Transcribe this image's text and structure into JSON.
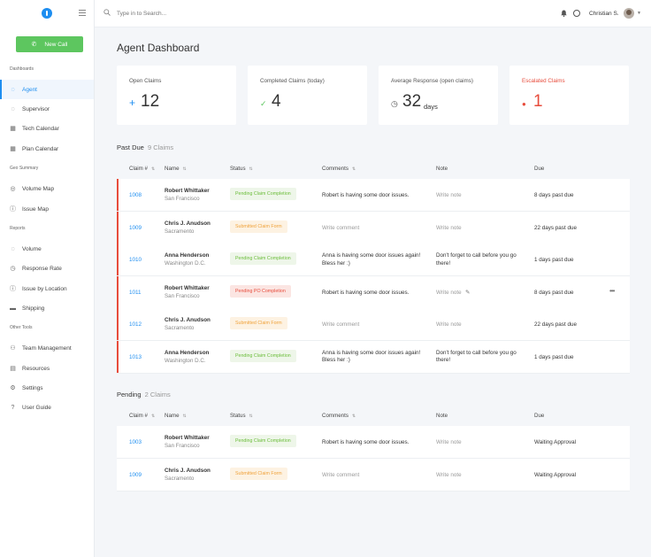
{
  "sidebar": {
    "new_call": "New Call",
    "sections": [
      {
        "title": "Dashboards",
        "items": [
          {
            "label": "Agent",
            "icon": "agent-icon",
            "active": true
          },
          {
            "label": "Supervisor",
            "icon": "supervisor-icon"
          },
          {
            "label": "Tech Calendar",
            "icon": "calendar-icon"
          },
          {
            "label": "Plan Calendar",
            "icon": "calendar-icon"
          }
        ]
      },
      {
        "title": "Geo Summary",
        "items": [
          {
            "label": "Volume Map",
            "icon": "globe-icon"
          },
          {
            "label": "Issue Map",
            "icon": "info-icon"
          }
        ]
      },
      {
        "title": "Reports",
        "items": [
          {
            "label": "Volume",
            "icon": "volume-icon"
          },
          {
            "label": "Response Rate",
            "icon": "clock-icon"
          },
          {
            "label": "Issue by Location",
            "icon": "info-icon"
          },
          {
            "label": "Shipping",
            "icon": "truck-icon"
          }
        ]
      },
      {
        "title": "Other Tools",
        "items": [
          {
            "label": "Team Management",
            "icon": "team-icon"
          },
          {
            "label": "Resources",
            "icon": "document-icon"
          },
          {
            "label": "Settings",
            "icon": "gear-icon"
          },
          {
            "label": "User Guide",
            "icon": "help-icon"
          }
        ]
      }
    ]
  },
  "topbar": {
    "search_placeholder": "Type in to Search...",
    "user_name": "Christian S."
  },
  "page_title": "Agent Dashboard",
  "cards": [
    {
      "label": "Open Claims",
      "value": "12",
      "icon": "plus-icon",
      "icon_color": "#1e8ef0"
    },
    {
      "label": "Completed Claims (today)",
      "value": "4",
      "icon": "check-icon",
      "icon_color": "#5dc65f"
    },
    {
      "label": "Average Response (open claims)",
      "value": "32",
      "unit": "days",
      "icon": "timer-icon",
      "icon_color": "#555555"
    },
    {
      "label": "Escalated Claims",
      "value": "1",
      "icon": "alert-icon",
      "icon_color": "#e74c3c",
      "accent": true
    }
  ],
  "columns": [
    "Claim #",
    "Name",
    "Status",
    "Comments",
    "Note",
    "Due"
  ],
  "past_due": {
    "title": "Past Due",
    "count": "9 Claims",
    "rows": [
      {
        "claim": "1008",
        "name": "Robert Whittaker",
        "city": "San Francisco",
        "status": "Pending Claim Completion",
        "status_type": "green",
        "comment": "Robert is having some door issues.",
        "note": "Write note",
        "due": "8 days past due"
      },
      {
        "claim": "1009",
        "name": "Chris J. Anudson",
        "city": "Sacramento",
        "status": "Submitted Claim Form",
        "status_type": "orange",
        "comment": "Write comment",
        "note": "Write note",
        "due": "22 days past due"
      },
      {
        "claim": "1010",
        "name": "Anna Henderson",
        "city": "Washington D.C.",
        "status": "Pending Claim Completion",
        "status_type": "green",
        "comment": "Anna is having some door issues again! Bless her :)",
        "note": "Don't forget to call before you go there!",
        "due": "1 days past due"
      },
      {
        "claim": "1011",
        "name": "Robert Whittaker",
        "city": "San Francisco",
        "status": "Pending PO Completion",
        "status_type": "red",
        "comment": "Robert is having some door issues.",
        "note": "Write note",
        "due": "8 days past due",
        "hover": true
      },
      {
        "claim": "1012",
        "name": "Chris J. Anudson",
        "city": "Sacramento",
        "status": "Submitted Claim Form",
        "status_type": "orange",
        "comment": "Write comment",
        "note": "Write note",
        "due": "22 days past due"
      },
      {
        "claim": "1013",
        "name": "Anna Henderson",
        "city": "Washington D.C.",
        "status": "Pending Claim Completion",
        "status_type": "green",
        "comment": "Anna is having some door issues again! Bless her :)",
        "note": "Don't forget to call before you go there!",
        "due": "1 days past due"
      }
    ]
  },
  "pending": {
    "title": "Pending",
    "count": "2 Claims",
    "rows": [
      {
        "claim": "1003",
        "name": "Robert Whittaker",
        "city": "San Francisco",
        "status": "Pending Claim Completion",
        "status_type": "green",
        "comment": "Robert is having some door issues.",
        "note": "Write note",
        "due": "Waiting Approval"
      },
      {
        "claim": "1009",
        "name": "Chris J. Anudson",
        "city": "Sacramento",
        "status": "Submitted Claim Form",
        "status_type": "orange",
        "comment": "Write comment",
        "note": "Write note",
        "due": "Waiting Approval"
      }
    ]
  }
}
